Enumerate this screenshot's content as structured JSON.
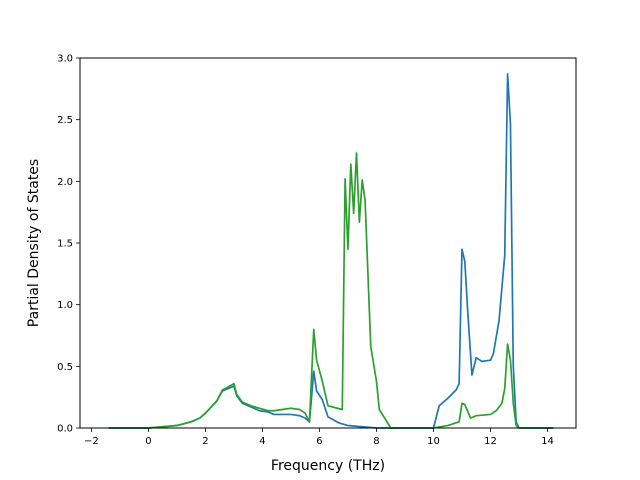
{
  "chart_data": {
    "type": "line",
    "title": "",
    "xlabel": "Frequency (THz)",
    "ylabel": "Partial Density of States",
    "xlim": [
      -2.4,
      15.0
    ],
    "ylim": [
      0.0,
      3.0
    ],
    "xticks": [
      -2,
      0,
      2,
      4,
      6,
      8,
      10,
      12,
      14
    ],
    "xtick_labels": [
      "−2",
      "0",
      "2",
      "4",
      "6",
      "8",
      "10",
      "12",
      "14"
    ],
    "yticks": [
      0.0,
      0.5,
      1.0,
      1.5,
      2.0,
      2.5,
      3.0
    ],
    "ytick_labels": [
      "0.0",
      "0.5",
      "1.0",
      "1.5",
      "2.0",
      "2.5",
      "3.0"
    ],
    "grid": false,
    "legend": "none",
    "series": [
      {
        "color": "#1f77b4",
        "x": [
          -1.4,
          0.0,
          0.5,
          1.0,
          1.5,
          1.8,
          2.0,
          2.2,
          2.4,
          2.6,
          2.7,
          3.0,
          3.1,
          3.3,
          3.6,
          3.9,
          4.2,
          4.4,
          4.7,
          5.0,
          5.3,
          5.5,
          5.65,
          5.8,
          5.9,
          6.1,
          6.3,
          6.7,
          7.0,
          7.5,
          8.0,
          8.5,
          9.0,
          9.5,
          10.0,
          10.2,
          10.5,
          10.8,
          10.9,
          11.0,
          11.1,
          11.2,
          11.35,
          11.5,
          11.7,
          12.0,
          12.1,
          12.3,
          12.5,
          12.6,
          12.7,
          12.8,
          12.9,
          13.0,
          13.1,
          13.5,
          14.2
        ],
        "y": [
          0.0,
          0.0,
          0.01,
          0.02,
          0.05,
          0.08,
          0.12,
          0.17,
          0.22,
          0.3,
          0.31,
          0.34,
          0.26,
          0.2,
          0.17,
          0.14,
          0.13,
          0.11,
          0.11,
          0.11,
          0.1,
          0.08,
          0.05,
          0.46,
          0.3,
          0.23,
          0.09,
          0.04,
          0.02,
          0.01,
          0.0,
          0.0,
          0.0,
          0.0,
          0.0,
          0.18,
          0.24,
          0.31,
          0.36,
          1.45,
          1.35,
          0.95,
          0.43,
          0.57,
          0.54,
          0.55,
          0.6,
          0.87,
          1.4,
          2.87,
          2.47,
          0.5,
          0.05,
          0.0,
          0.0,
          0.0,
          0.0
        ]
      },
      {
        "color": "#2ca02c",
        "x": [
          -1.4,
          0.0,
          0.5,
          1.0,
          1.5,
          1.8,
          2.0,
          2.2,
          2.4,
          2.6,
          2.7,
          3.0,
          3.1,
          3.3,
          3.6,
          3.9,
          4.2,
          4.4,
          4.7,
          5.0,
          5.3,
          5.5,
          5.65,
          5.8,
          5.9,
          6.1,
          6.3,
          6.8,
          6.9,
          7.0,
          7.1,
          7.2,
          7.3,
          7.4,
          7.5,
          7.6,
          7.8,
          8.0,
          8.1,
          8.5,
          9.0,
          9.5,
          10.0,
          10.5,
          10.9,
          11.0,
          11.1,
          11.3,
          11.5,
          12.0,
          12.2,
          12.4,
          12.5,
          12.6,
          12.7,
          12.8,
          12.9,
          13.0,
          13.5,
          14.2
        ],
        "y": [
          0.0,
          0.0,
          0.01,
          0.02,
          0.05,
          0.08,
          0.12,
          0.17,
          0.22,
          0.31,
          0.32,
          0.36,
          0.27,
          0.21,
          0.18,
          0.16,
          0.14,
          0.14,
          0.15,
          0.16,
          0.15,
          0.12,
          0.05,
          0.8,
          0.55,
          0.38,
          0.18,
          0.15,
          2.02,
          1.45,
          2.14,
          1.74,
          2.23,
          1.67,
          2.01,
          1.85,
          0.66,
          0.38,
          0.15,
          0.0,
          0.0,
          0.0,
          0.0,
          0.02,
          0.05,
          0.2,
          0.19,
          0.08,
          0.1,
          0.11,
          0.14,
          0.2,
          0.32,
          0.68,
          0.55,
          0.2,
          0.02,
          0.0,
          0.0,
          0.0
        ]
      }
    ]
  }
}
